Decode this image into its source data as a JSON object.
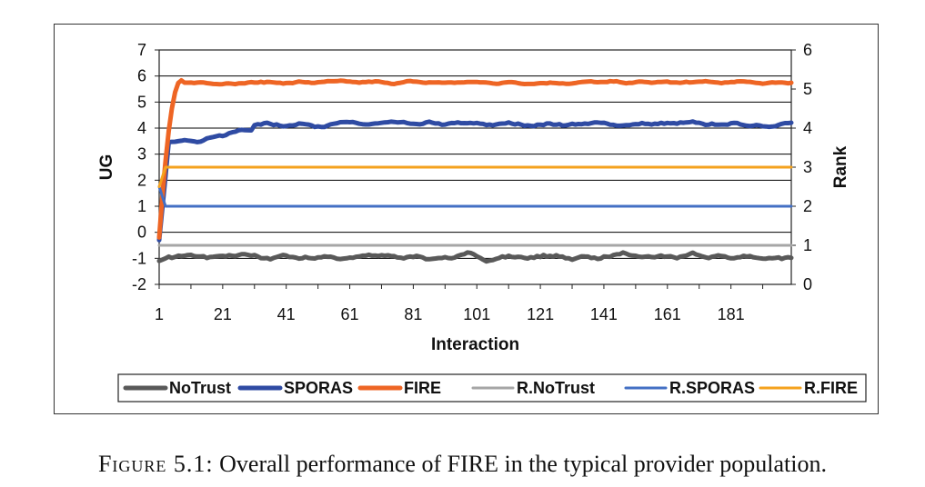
{
  "chart_data": {
    "type": "line",
    "xlabel": "Interaction",
    "ylabel": "UG",
    "y2label": "Rank",
    "ylim": [
      -2,
      7
    ],
    "y2lim": [
      0,
      6
    ],
    "yticks": [
      "-2",
      "-1",
      "0",
      "1",
      "2",
      "3",
      "4",
      "5",
      "6",
      "7"
    ],
    "y2ticks": [
      "0",
      "1",
      "2",
      "3",
      "4",
      "5",
      "6"
    ],
    "xlim": [
      1,
      200
    ],
    "xticks": [
      "1",
      "21",
      "41",
      "61",
      "81",
      "101",
      "121",
      "141",
      "161",
      "181"
    ],
    "grid": true,
    "legend_position": "bottom",
    "series": [
      {
        "name": "NoTrust",
        "axis": "left",
        "color": "#595959",
        "kind": "noisy",
        "start": -1.1,
        "level": -0.95,
        "rise": 4,
        "noise": 0.17
      },
      {
        "name": "SPORAS",
        "axis": "left",
        "color": "#2f4ba3",
        "kind": "noisy",
        "start": -0.3,
        "level": 4.15,
        "rise": 30,
        "jump": 3.4,
        "noise": 0.12
      },
      {
        "name": "FIRE",
        "axis": "left",
        "color": "#ee6524",
        "kind": "noisy",
        "start": -0.2,
        "level": 5.75,
        "rise": 8,
        "overshoot": true,
        "noise": 0.08
      },
      {
        "name": "R.NoTrust",
        "axis": "right",
        "color": "#a6a6a6",
        "kind": "constant",
        "value": 1
      },
      {
        "name": "R.SPORAS",
        "axis": "right",
        "color": "#4470c4",
        "kind": "constant",
        "value": 2,
        "start": 2.5
      },
      {
        "name": "R.FIRE",
        "axis": "right",
        "color": "#f4a21e",
        "kind": "constant",
        "value": 3,
        "start": 2.5
      }
    ]
  },
  "caption": {
    "figure_label": "Figure 5.1:",
    "text": "Overall performance of FIRE in the typical provider population."
  }
}
